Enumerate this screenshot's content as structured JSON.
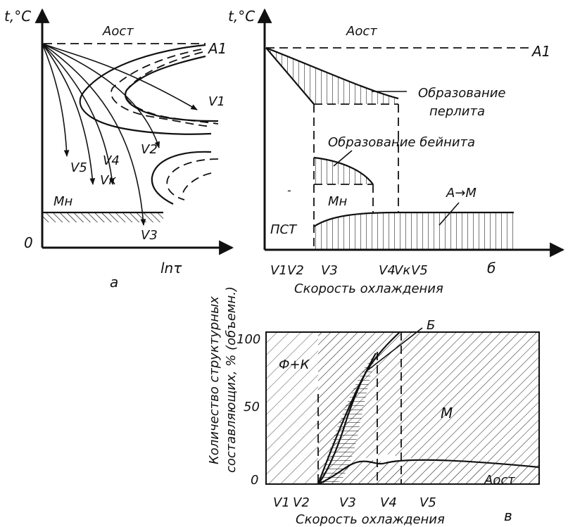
{
  "panel_a": {
    "y_axis": "t,°C",
    "x_axis": "lnτ",
    "origin": "0",
    "top_line": "Aост",
    "a1": "A1",
    "mn": "Mн",
    "curves": [
      "V1",
      "V2",
      "V3",
      "Vк",
      "V4",
      "V5"
    ],
    "tag": "а"
  },
  "panel_b": {
    "y_axis": "t,°C",
    "top_line": "Aост",
    "a1": "A1",
    "pearlite": [
      "Образование",
      "перлита"
    ],
    "bainite": "Образование бейнита",
    "mn": "Mн",
    "am": "A→M",
    "pst": "ПСТ",
    "ticks": [
      "V1",
      "V2",
      "V3",
      "V4",
      "Vк",
      "V5"
    ],
    "x_title": "Скорость охлаждения",
    "tag": "б"
  },
  "panel_c": {
    "y_title": [
      "Количество структурных",
      "составляющих, % (объемн.)"
    ],
    "y_ticks": [
      "100",
      "50",
      "0"
    ],
    "regions": {
      "fk": "Ф+К",
      "b": "Б",
      "m": "М",
      "aost": "Aост"
    },
    "ticks": [
      "V1",
      "V2",
      "V3",
      "V4",
      "V5"
    ],
    "x_title": "Скорость охлаждения",
    "tag": "в"
  },
  "colors": {
    "ink": "#111111",
    "paper": "#ffffff"
  }
}
